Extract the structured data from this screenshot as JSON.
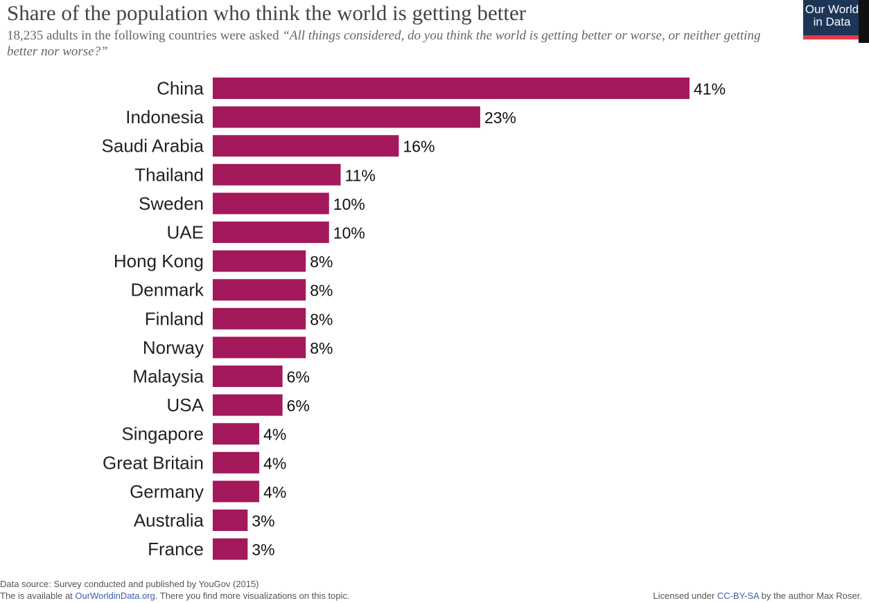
{
  "header": {
    "title": "Share of the population who think the world is getting better",
    "subtitle_lead": "18,235 adults in the following countries were asked ",
    "subtitle_question": "“All things considered, do you think the world is getting better or worse, or neither getting better nor worse?”"
  },
  "logo": {
    "line1": "Our World",
    "line2": "in Data",
    "bg_color": "#1d3557",
    "accent_color": "#e63946"
  },
  "footer": {
    "source": "Data source: Survey conducted and published by YouGov (2015)",
    "available_prefix": "The is available at ",
    "available_link": "OurWorldinData.org",
    "available_suffix": ". There you find more visualizations on this topic.",
    "license_prefix": "Licensed under ",
    "license_link": "CC-BY-SA",
    "license_suffix": " by the author Max Roser."
  },
  "chart_data": {
    "type": "bar",
    "orientation": "horizontal",
    "bar_color": "#a3195b",
    "value_suffix": "%",
    "xlim": [
      0,
      41
    ],
    "grid": false,
    "categories": [
      "China",
      "Indonesia",
      "Saudi Arabia",
      "Thailand",
      "Sweden",
      "UAE",
      "Hong Kong",
      "Denmark",
      "Finland",
      "Norway",
      "Malaysia",
      "USA",
      "Singapore",
      "Great Britain",
      "Germany",
      "Australia",
      "France"
    ],
    "values": [
      41,
      23,
      16,
      11,
      10,
      10,
      8,
      8,
      8,
      8,
      6,
      6,
      4,
      4,
      4,
      3,
      3
    ]
  }
}
